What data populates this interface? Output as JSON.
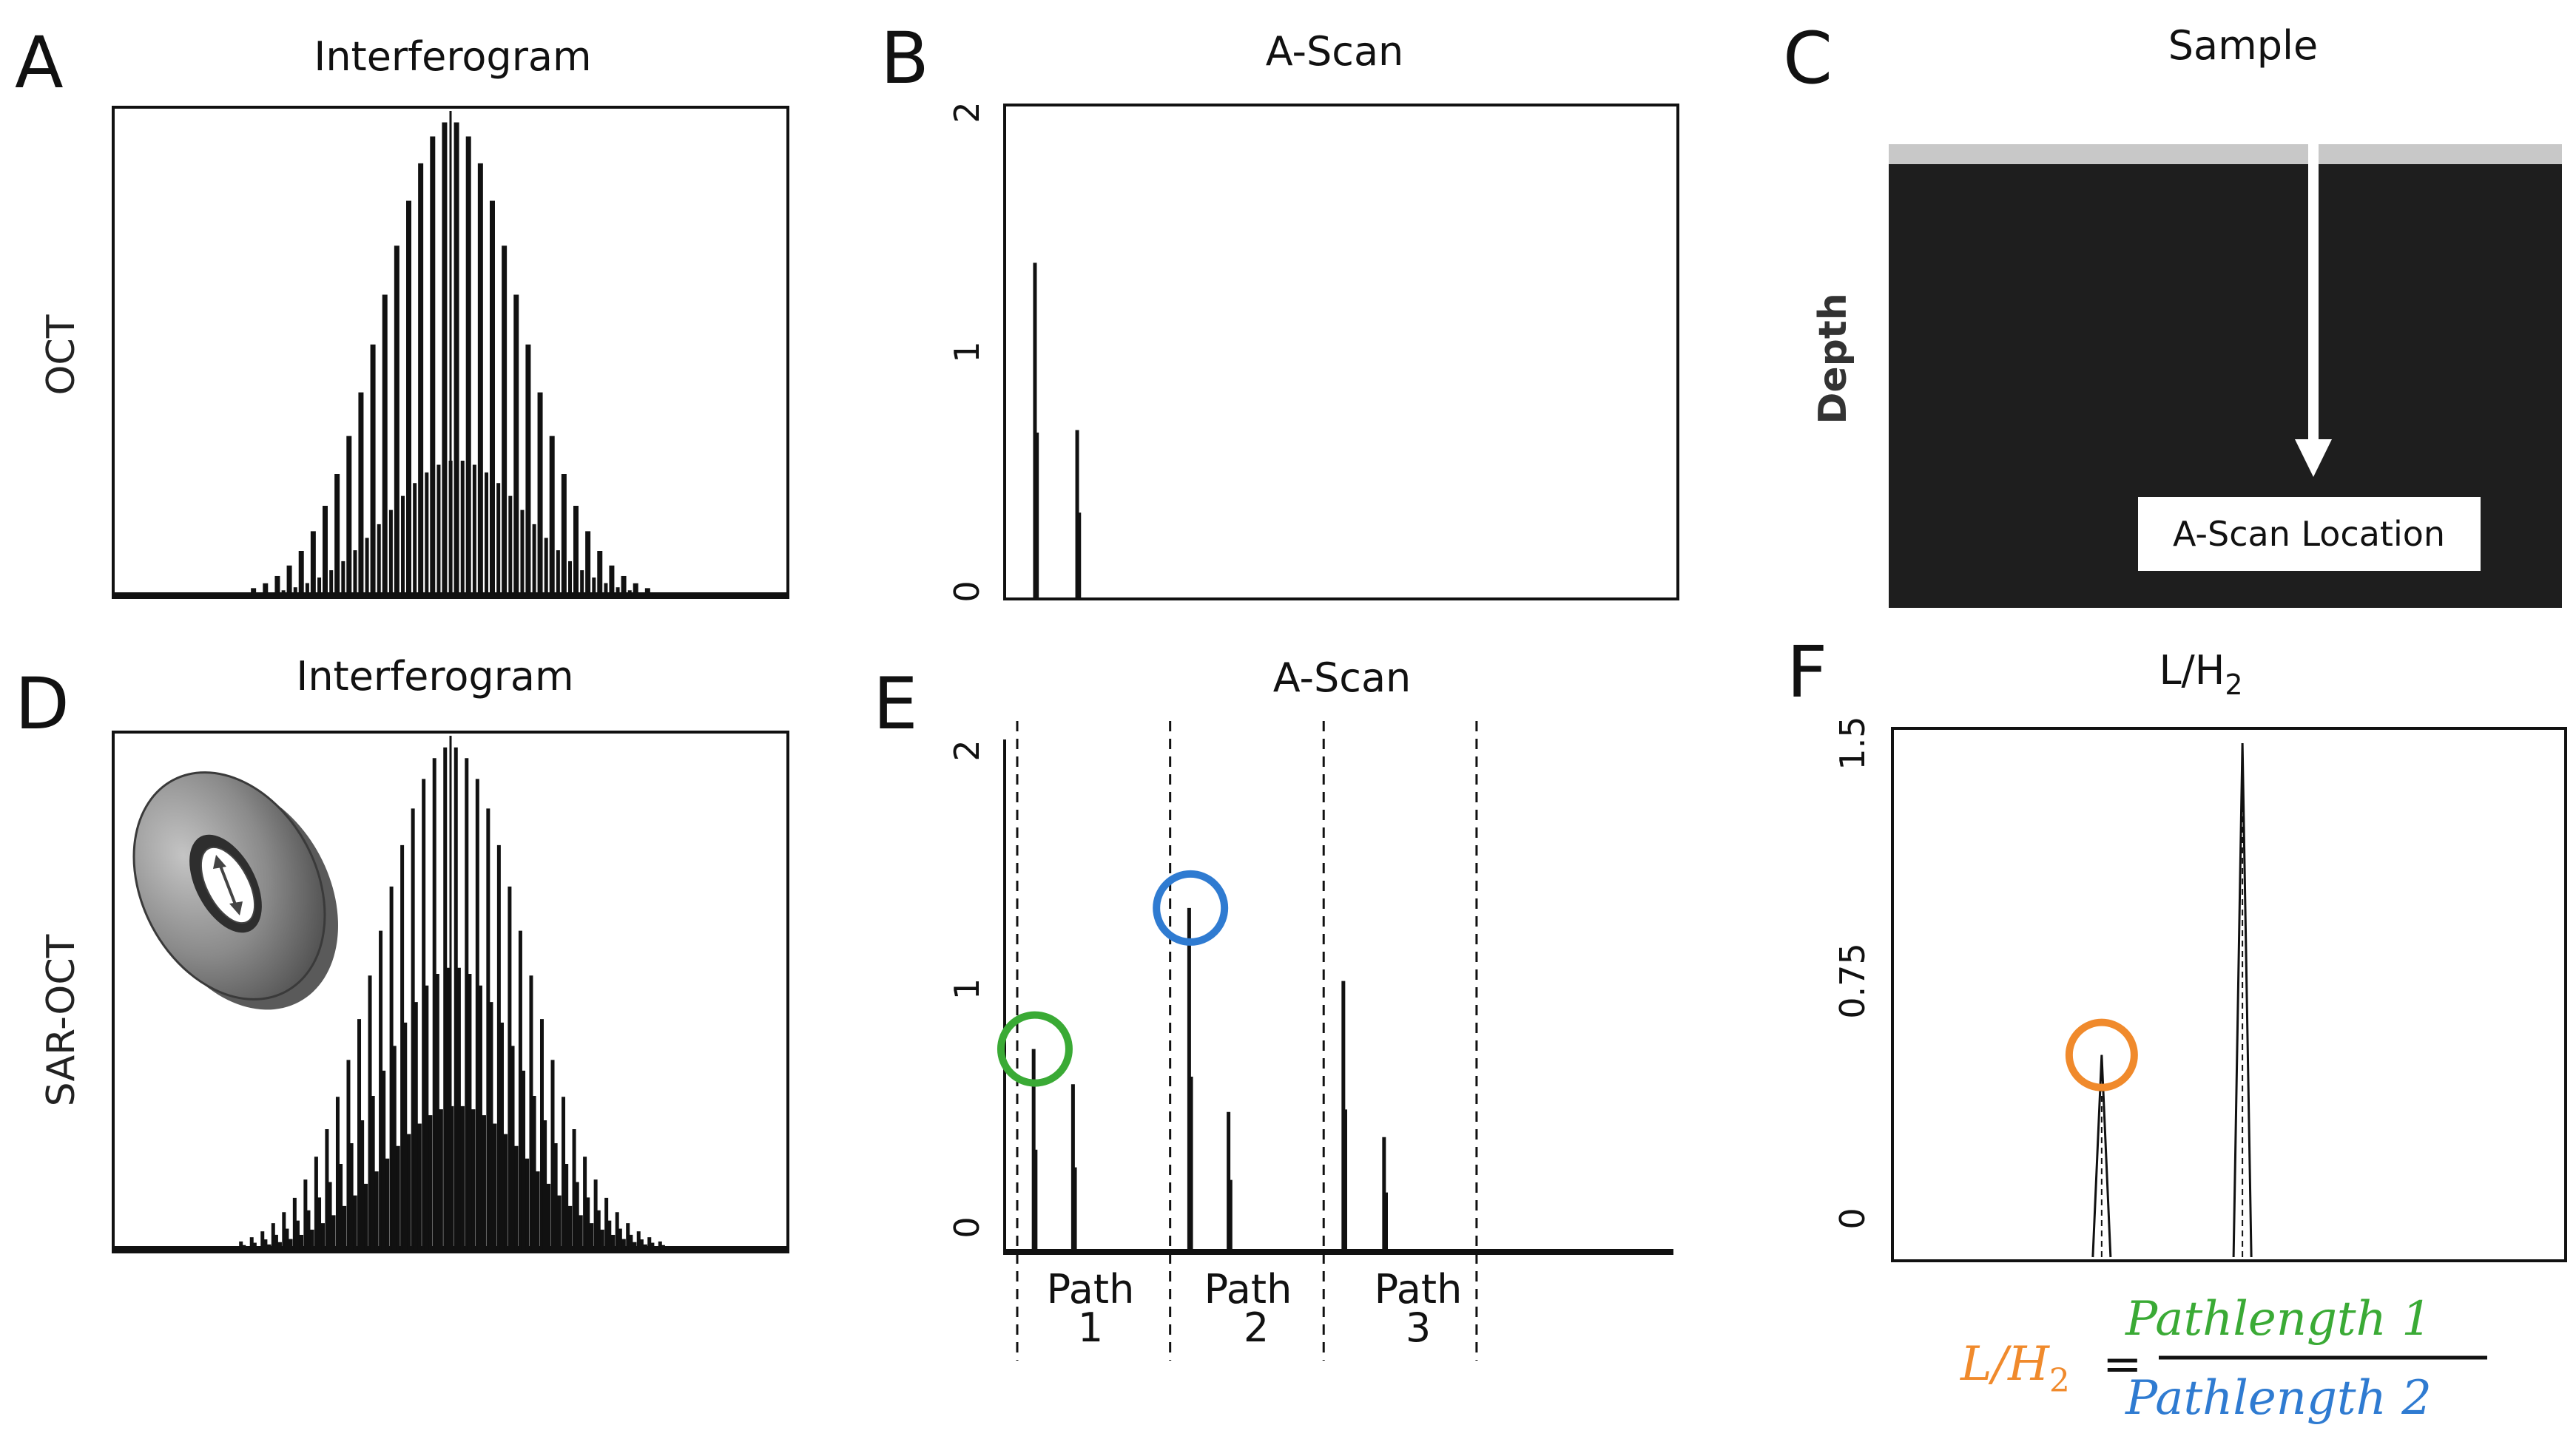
{
  "panels": {
    "A": {
      "label": "A",
      "title": "Interferogram",
      "row_label": "OCT"
    },
    "B": {
      "label": "B",
      "title": "A-Scan"
    },
    "C": {
      "label": "C",
      "title": "Sample",
      "depth_label": "Depth",
      "box_text": "A-Scan Location"
    },
    "D": {
      "label": "D",
      "title": "Interferogram",
      "row_label": "SAR-OCT"
    },
    "E": {
      "label": "E",
      "title": "A-Scan",
      "paths": [
        {
          "word": "Path",
          "num": "1"
        },
        {
          "word": "Path",
          "num": "2"
        },
        {
          "word": "Path",
          "num": "3"
        }
      ]
    },
    "F": {
      "label": "F",
      "title_main": "L/H",
      "title_sub": "2"
    }
  },
  "equation": {
    "lhs_main": "L/H",
    "lhs_sub": "2",
    "equals": "=",
    "numerator": "Pathlength 1",
    "denominator": "Pathlength 2"
  },
  "colors": {
    "green": "#3aaa35",
    "blue": "#2f7bd1",
    "orange": "#f08a2c",
    "sample_bg": "#1e1e1e",
    "surface": "#c8c8c8"
  },
  "chart_data": [
    {
      "panel": "A",
      "type": "line",
      "title": "Interferogram",
      "description_series": "fringe signal with gaussian envelope",
      "envelope": {
        "peak": 1.0,
        "center": 0.5,
        "width": 0.16,
        "baseline": 0.0
      },
      "fringe_count": 36,
      "xlabel": "",
      "ylabel": "OCT"
    },
    {
      "panel": "B",
      "type": "bar",
      "title": "A-Scan",
      "ylim": [
        0,
        2
      ],
      "yticks": [
        "0",
        "1",
        "2"
      ],
      "x": [
        0.043,
        0.046,
        0.106,
        0.109
      ],
      "values": [
        1.38,
        0.68,
        0.69,
        0.35
      ],
      "xlim": [
        0,
        1
      ]
    },
    {
      "panel": "D",
      "type": "line",
      "title": "Interferogram",
      "envelope": {
        "peak": 1.0,
        "center": 0.5,
        "width": 0.17,
        "baseline": 0.0
      },
      "fringe_count": 40,
      "ylabel": "SAR-OCT"
    },
    {
      "panel": "E",
      "type": "bar",
      "title": "A-Scan",
      "ylim": [
        0,
        2
      ],
      "yticks": [
        "0",
        "1",
        "2"
      ],
      "xlim": [
        0,
        1
      ],
      "x": [
        0.025,
        0.028,
        0.085,
        0.088,
        0.262,
        0.265,
        0.322,
        0.325,
        0.497,
        0.5,
        0.559,
        0.562
      ],
      "values": [
        0.8,
        0.4,
        0.66,
        0.33,
        1.36,
        0.69,
        0.55,
        0.28,
        1.07,
        0.56,
        0.45,
        0.23
      ],
      "dividers": [
        0.0,
        0.233,
        0.467,
        0.7
      ],
      "highlights": [
        {
          "x": 0.027,
          "y": 0.8,
          "color": "green"
        },
        {
          "x": 0.264,
          "y": 1.36,
          "color": "blue"
        }
      ]
    },
    {
      "panel": "F",
      "type": "line",
      "title": "L/H2",
      "ylim": [
        0,
        1.5
      ],
      "yticks": [
        "0",
        "0.75",
        "1.5"
      ],
      "xlim": [
        0,
        1
      ],
      "peaks": [
        {
          "x": 0.31,
          "y": 0.59
        },
        {
          "x": 0.52,
          "y": 1.5
        }
      ],
      "highlights": [
        {
          "x": 0.31,
          "y": 0.59,
          "color": "orange"
        }
      ]
    }
  ]
}
